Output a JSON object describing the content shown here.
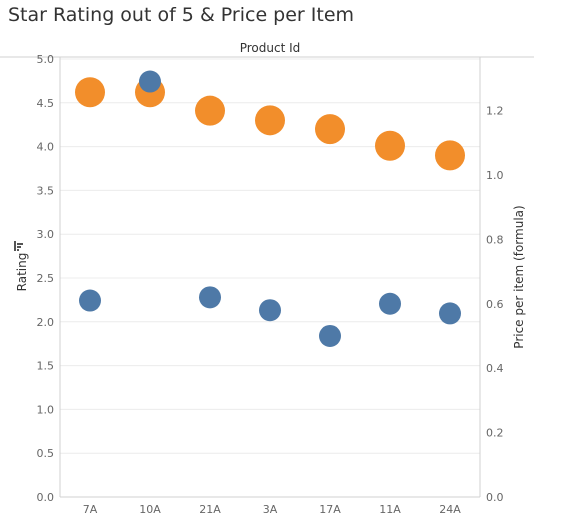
{
  "chart_data": {
    "type": "scatter",
    "title": "Star Rating out of 5 & Price per Item",
    "header_label": "Product Id",
    "categories": [
      "7A",
      "10A",
      "21A",
      "3A",
      "17A",
      "11A",
      "24A"
    ],
    "left_axis": {
      "label": "Rating",
      "ylim": [
        0,
        5.0
      ],
      "ticks": [
        "0.0",
        "0.5",
        "1.0",
        "1.5",
        "2.0",
        "2.5",
        "3.0",
        "3.5",
        "4.0",
        "4.5",
        "5.0"
      ]
    },
    "right_axis": {
      "label": "Price per item (formula)",
      "ylim": [
        0,
        1.36
      ],
      "ticks": [
        "0.0",
        "0.2",
        "0.4",
        "0.6",
        "0.8",
        "1.0",
        "1.2"
      ]
    },
    "series": [
      {
        "axis": "left",
        "color": "#f28e2b",
        "values": [
          4.62,
          4.62,
          4.41,
          4.3,
          4.2,
          4.01,
          3.9
        ]
      },
      {
        "axis": "right",
        "color": "#4e79a7",
        "values": [
          0.61,
          1.29,
          0.62,
          0.58,
          0.5,
          0.6,
          0.57
        ]
      }
    ],
    "grid": true,
    "colors": {
      "grid": "#ececec",
      "axis": "#d0d0d0",
      "text": "#666666"
    }
  }
}
